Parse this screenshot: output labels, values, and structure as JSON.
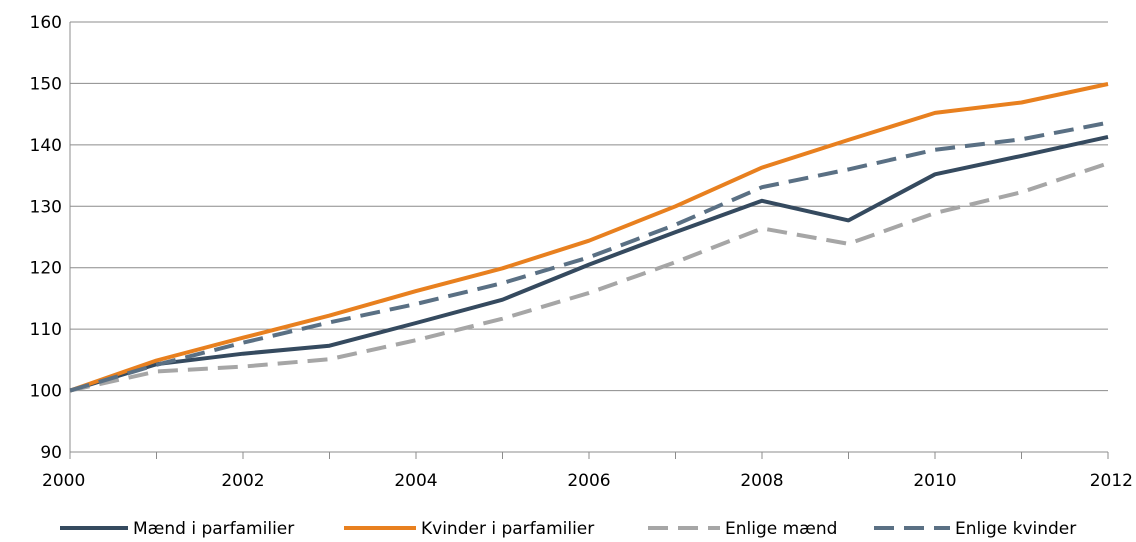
{
  "chart_data": {
    "type": "line",
    "title": "",
    "xlabel": "",
    "ylabel": "",
    "x": [
      2000,
      2001,
      2002,
      2003,
      2004,
      2005,
      2006,
      2007,
      2008,
      2009,
      2010,
      2011,
      2012
    ],
    "x_tick_labels": [
      "2000",
      "2002",
      "2004",
      "2006",
      "2008",
      "2010",
      "2012"
    ],
    "x_tick_values": [
      2000,
      2002,
      2004,
      2006,
      2008,
      2010,
      2012
    ],
    "xlim": [
      2000,
      2012
    ],
    "ylim": [
      90,
      160
    ],
    "y_ticks": [
      90,
      100,
      110,
      120,
      130,
      140,
      150,
      160
    ],
    "y_tick_labels": [
      "90",
      "100",
      "110",
      "120",
      "130",
      "140",
      "150",
      "160"
    ],
    "grid": "horizontal",
    "legend_position": "bottom",
    "series": [
      {
        "name": "Mænd i parfamilier",
        "color": "#354a5f",
        "style": "solid",
        "values": [
          100,
          104.3,
          106.0,
          107.3,
          111.0,
          114.8,
          120.5,
          125.8,
          130.9,
          127.7,
          135.2,
          138.2,
          141.3
        ]
      },
      {
        "name": "Kvinder i parfamilier",
        "color": "#e8801f",
        "style": "solid",
        "values": [
          100,
          104.9,
          108.6,
          112.2,
          116.2,
          119.9,
          124.4,
          130.0,
          136.3,
          140.8,
          145.2,
          146.9,
          149.9
        ]
      },
      {
        "name": "Enlige mænd",
        "color": "#a6a6a6",
        "style": "dashed",
        "values": [
          100,
          103.1,
          103.9,
          105.1,
          108.2,
          111.7,
          115.9,
          120.9,
          126.4,
          123.9,
          128.9,
          132.3,
          137.0
        ]
      },
      {
        "name": "Enlige kvinder",
        "color": "#5a7084",
        "style": "dashed",
        "values": [
          100,
          104.2,
          107.8,
          111.1,
          114.1,
          117.5,
          121.7,
          127.0,
          133.1,
          136.0,
          139.2,
          140.9,
          143.6
        ]
      }
    ]
  }
}
